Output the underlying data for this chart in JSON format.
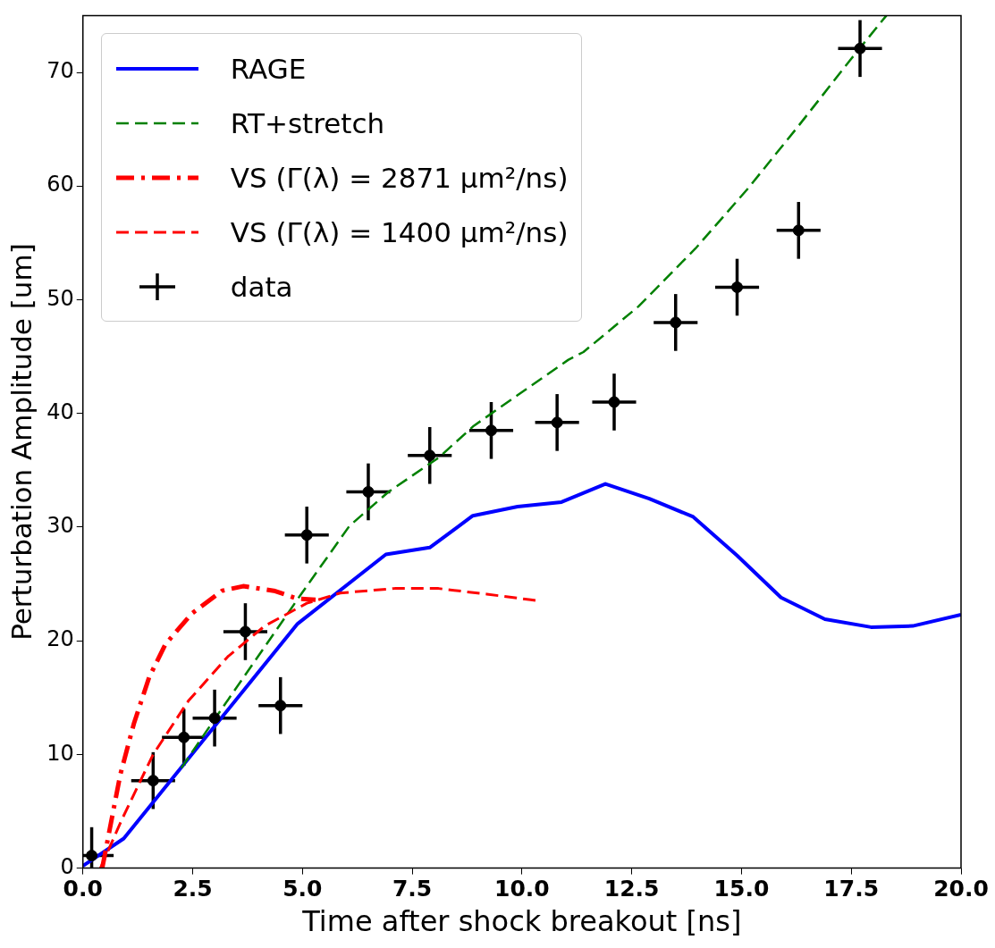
{
  "chart_data": {
    "type": "line",
    "xlabel": "Time after shock breakout [ns]",
    "ylabel": "Perturbation Amplitude [um]",
    "xlim": [
      0,
      20
    ],
    "xticks": [
      {
        "value": 0,
        "label": "0.0"
      },
      {
        "value": 2.5,
        "label": "2.5"
      },
      {
        "value": 5,
        "label": "5.0"
      },
      {
        "value": 7.5,
        "label": "7.5"
      },
      {
        "value": 10,
        "label": "10.0"
      },
      {
        "value": 12.5,
        "label": "12.5"
      },
      {
        "value": 15,
        "label": "15.0"
      },
      {
        "value": 17.5,
        "label": "17.5"
      },
      {
        "value": 20,
        "label": "20.0"
      }
    ],
    "ylim": [
      0,
      75
    ],
    "yticks": [
      0,
      10,
      20,
      30,
      40,
      50,
      60,
      70
    ],
    "grid": false,
    "legend": "top left",
    "series": [
      {
        "name": "RAGE",
        "type": "line",
        "color": "#0000ff",
        "line_style": "solid",
        "marker": "none",
        "x": [
          0,
          0.93,
          4.89,
          6.9,
          7.9,
          8.88,
          9.9,
          10.9,
          11.9,
          12.9,
          13.9,
          14.9,
          15.9,
          16.9,
          17.95,
          18.9,
          20
        ],
        "values": [
          0.2,
          2.6,
          21.5,
          27.6,
          28.2,
          31.0,
          31.8,
          32.2,
          33.8,
          32.5,
          30.9,
          27.5,
          23.8,
          21.9,
          21.2,
          21.3,
          22.3
        ]
      },
      {
        "name": "RT+stretch",
        "type": "line",
        "color": "#008000",
        "line_style": "dashed",
        "marker": "none",
        "x": [
          2.24,
          3.0,
          4.97,
          6.07,
          6.96,
          8.1,
          8.9,
          9.9,
          11.05,
          11.4,
          12.65,
          13.95,
          15.15,
          16.3,
          17.5,
          18.3
        ],
        "values": [
          8.8,
          13.1,
          24.1,
          30.1,
          33.1,
          36.1,
          38.9,
          41.6,
          44.7,
          45.4,
          49.4,
          54.5,
          59.8,
          65.3,
          71.2,
          75
        ]
      },
      {
        "name": "VS (Γ(λ) = 2871 μm²/ns)",
        "type": "line",
        "color": "#ff0000",
        "line_style": "dashdot",
        "marker": "none",
        "x": [
          0.44,
          0.85,
          1.16,
          1.51,
          1.88,
          2.48,
          3.17,
          3.65,
          4.35,
          4.89,
          5.3
        ],
        "values": [
          0,
          8.2,
          12.7,
          16.8,
          19.7,
          22.4,
          24.4,
          24.8,
          24.4,
          23.7,
          23.6
        ]
      },
      {
        "name": "VS (Γ(λ) = 1400 μm²/ns)",
        "type": "line",
        "color": "#ff0000",
        "line_style": "dashed",
        "marker": "none",
        "x": [
          0.4,
          0.89,
          1.6,
          2.4,
          3.3,
          4.14,
          5.1,
          5.86,
          7.1,
          8.1,
          9.2,
          10.2,
          10.4
        ],
        "values": [
          0,
          4.3,
          10.0,
          14.7,
          18.6,
          21.3,
          23.3,
          24.2,
          24.6,
          24.6,
          24.1,
          23.6,
          23.5
        ]
      },
      {
        "name": "data",
        "type": "scatter",
        "color": "#000000",
        "marker": "circle",
        "x": [
          0.2,
          1.6,
          2.3,
          3.0,
          3.7,
          4.5,
          5.1,
          6.5,
          7.9,
          9.3,
          10.8,
          12.1,
          13.5,
          14.9,
          16.3,
          17.7
        ],
        "values": [
          1.1,
          7.7,
          11.5,
          13.2,
          20.8,
          14.3,
          29.3,
          33.1,
          36.3,
          38.5,
          39.2,
          41.0,
          48.0,
          51.1,
          56.1,
          72.1
        ],
        "errors": [
          [
            0,
            3.6
          ],
          2.5,
          2.5,
          2.5,
          2.5,
          2.5,
          2.5,
          2.5,
          2.5,
          2.5,
          2.5,
          2.5,
          2.5,
          2.5,
          2.5,
          2.5
        ],
        "xerrors": [
          [
            0,
            0.7
          ],
          0.5,
          0.5,
          0.5,
          0.5,
          0.5,
          0.5,
          0.5,
          0.5,
          0.5,
          0.5,
          0.5,
          0.5,
          0.5,
          0.5,
          0.5
        ]
      }
    ]
  }
}
